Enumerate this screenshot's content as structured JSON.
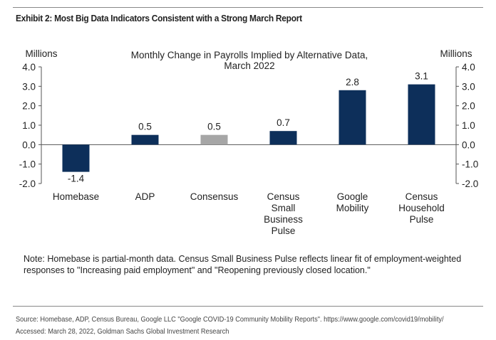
{
  "exhibit_title": "Exhibit 2: Most Big Data Indicators Consistent with a Strong March Report",
  "note": "Note: Homebase is partial-month data. Census Small Business Pulse reflects linear fit of employment-weighted responses to \"Increasing paid employment\" and \"Reopening previously closed location.\"",
  "source_line1": "Source: Homebase, ADP, Census Bureau, Google LLC \"Google COVID-19 Community Mobility Reports\". https://www.google.com/covid19/mobility/",
  "source_line2": "Accessed: March 28, 2022, Goldman Sachs Global Investment Research",
  "colors": {
    "primary": "#0d2f5a",
    "consensus": "#a6a6a6"
  },
  "chart_data": {
    "type": "bar",
    "title": [
      "Monthly Change in Payrolls Implied by Alternative Data,",
      "March 2022"
    ],
    "ylabel_left": "Millions",
    "ylabel_right": "Millions",
    "ylim": [
      -2,
      4
    ],
    "yticks": [
      "4.0",
      "3.0",
      "2.0",
      "1.0",
      "0.0",
      "-1.0",
      "-2.0"
    ],
    "categories": [
      [
        "Homebase"
      ],
      [
        "ADP"
      ],
      [
        "Consensus"
      ],
      [
        "Census",
        "Small",
        "Business",
        "Pulse"
      ],
      [
        "Google",
        "Mobility"
      ],
      [
        "Census",
        "Household",
        "Pulse"
      ]
    ],
    "values": [
      -1.4,
      0.5,
      0.5,
      0.7,
      2.8,
      3.1
    ],
    "data_labels": [
      "-1.4",
      "0.5",
      "0.5",
      "0.7",
      "2.8",
      "3.1"
    ],
    "highlight_index": 2,
    "grid": false
  }
}
